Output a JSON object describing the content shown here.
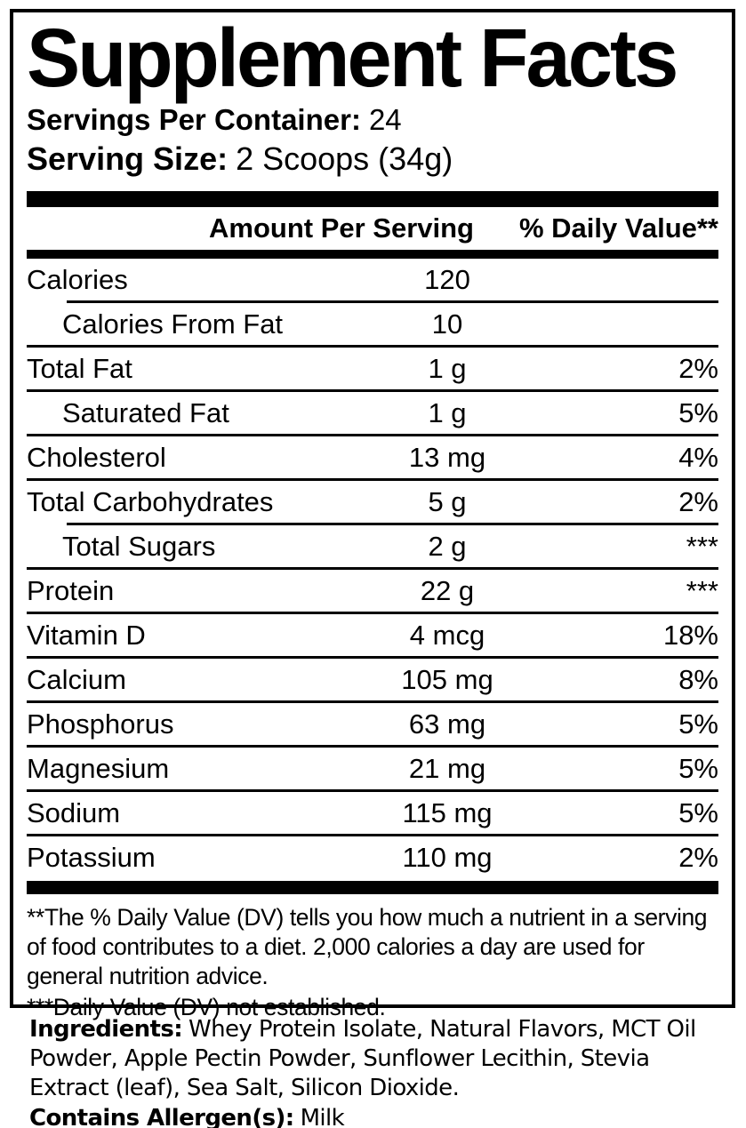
{
  "panel": {
    "title": "Supplement Facts",
    "servings": {
      "label": "Servings Per Container:",
      "value": "24"
    },
    "serving_size": {
      "label": "Serving Size:",
      "value": "2 Scoops (34g)"
    },
    "header": {
      "amount": "Amount Per Serving",
      "daily_value": "% Daily Value**"
    },
    "rows": [
      {
        "name": "Calories",
        "amount": "120",
        "dv": ""
      },
      {
        "name": "Calories From Fat",
        "amount": "10",
        "dv": ""
      },
      {
        "name": "Total Fat",
        "amount": "1 g",
        "dv": "2%"
      },
      {
        "name": "Saturated Fat",
        "amount": "1 g",
        "dv": "5%"
      },
      {
        "name": "Cholesterol",
        "amount": "13 mg",
        "dv": "4%"
      },
      {
        "name": "Total Carbohydrates",
        "amount": "5 g",
        "dv": "2%"
      },
      {
        "name": "Total Sugars",
        "amount": "2 g",
        "dv": "***"
      },
      {
        "name": "Protein",
        "amount": "22 g",
        "dv": "***"
      },
      {
        "name": "Vitamin D",
        "amount": "4 mcg",
        "dv": "18%"
      },
      {
        "name": "Calcium",
        "amount": "105 mg",
        "dv": "8%"
      },
      {
        "name": "Phosphorus",
        "amount": "63 mg",
        "dv": "5%"
      },
      {
        "name": "Magnesium",
        "amount": "21 mg",
        "dv": "5%"
      },
      {
        "name": "Sodium",
        "amount": "115 mg",
        "dv": "5%"
      },
      {
        "name": "Potassium",
        "amount": "110 mg",
        "dv": "2%"
      }
    ],
    "footnotes": {
      "daily_value": "**The % Daily Value (DV) tells you how much a nutrient in a serving of food contributes to a diet. 2,000 calories a day are used for general nutrition advice.",
      "not_established": "***Daily Value (DV) not established."
    }
  },
  "ingredients": {
    "label": "Ingredients:",
    "list": "Whey Protein Isolate, Natural Flavors, MCT Oil Powder, Apple Pectin Powder, Sunflower Lecithin, Stevia Extract (leaf), Sea Salt, Silicon Dioxide.",
    "allergen_label": "Contains Allergen(s):",
    "allergen_value": "Milk"
  },
  "colors": {
    "ink": "#000000",
    "background": "#ffffff"
  }
}
